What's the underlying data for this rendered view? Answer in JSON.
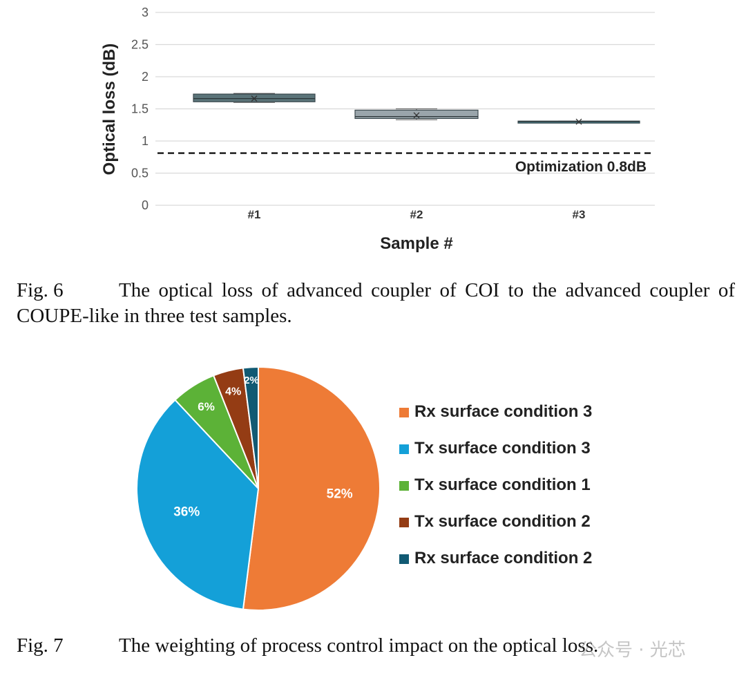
{
  "chart_data": [
    {
      "type": "box",
      "ylabel": "Optical loss (dB)",
      "xlabel": "Sample #",
      "ylim": [
        0,
        3
      ],
      "yticks": [
        "0",
        "0.5",
        "1",
        "1.5",
        "2",
        "2.5",
        "3"
      ],
      "grid": true,
      "categories": [
        "#1",
        "#2",
        "#3"
      ],
      "boxes": [
        {
          "name": "#1",
          "min": 1.6,
          "q1": 1.61,
          "median": 1.66,
          "q3": 1.73,
          "max": 1.74,
          "mean": 1.66,
          "color": "#5b7479"
        },
        {
          "name": "#2",
          "min": 1.33,
          "q1": 1.35,
          "median": 1.38,
          "q3": 1.48,
          "max": 1.5,
          "mean": 1.4,
          "color": "#9aa5ab"
        },
        {
          "name": "#3",
          "min": 1.29,
          "q1": 1.29,
          "median": 1.3,
          "q3": 1.31,
          "max": 1.31,
          "mean": 1.3,
          "color": "#4d8a97"
        }
      ],
      "reference_line": {
        "value": 0.8,
        "label": "Optimization 0.8dB"
      }
    },
    {
      "type": "pie",
      "slices": [
        {
          "label": "Rx surface condition 3",
          "value": 52,
          "text": "52%",
          "color": "#ee7b36"
        },
        {
          "label": "Tx surface condition 3",
          "value": 36,
          "text": "36%",
          "color": "#14a0d8"
        },
        {
          "label": "Tx surface condition 1",
          "value": 6,
          "text": "6%",
          "color": "#5cb237"
        },
        {
          "label": "Tx surface condition 2",
          "value": 4,
          "text": "4%",
          "color": "#943c14"
        },
        {
          "label": "Rx surface condition 2",
          "value": 2,
          "text": "2%",
          "color": "#115a73"
        }
      ]
    }
  ],
  "captions": {
    "fig6_num": "Fig. 6",
    "fig6_text": "The optical loss of advanced coupler of COI to the advanced coupler of COUPE-like in three test samples.",
    "fig7_num": "Fig. 7",
    "fig7_text": "The weighting of process control impact on the optical loss."
  },
  "watermark": "公众号 · 光芯"
}
